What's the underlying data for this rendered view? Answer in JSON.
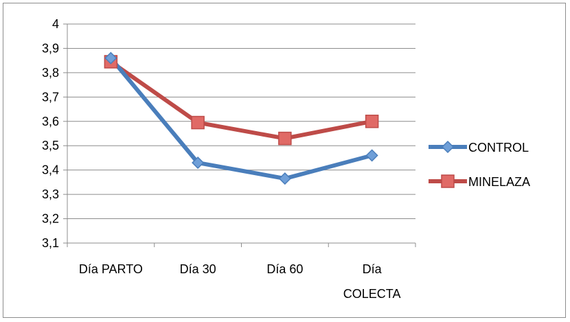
{
  "chart_data": {
    "type": "line",
    "title": "",
    "xlabel": "",
    "ylabel": "",
    "categories": [
      "Día PARTO",
      "Día 30",
      "Día 60",
      "Día COLECTA"
    ],
    "ylim": [
      3.1,
      4
    ],
    "yticks": [
      "3,1",
      "3,2",
      "3,3",
      "3,4",
      "3,5",
      "3,6",
      "3,7",
      "3,8",
      "3,9",
      "4"
    ],
    "grid": true,
    "legend_position": "right",
    "series": [
      {
        "name": "CONTROL",
        "values": [
          3.86,
          3.43,
          3.365,
          3.46
        ],
        "color": "#4a7ebb",
        "marker": "diamond"
      },
      {
        "name": "MINELAZA",
        "values": [
          3.845,
          3.595,
          3.53,
          3.6
        ],
        "color": "#be4b48",
        "marker": "square"
      }
    ]
  }
}
